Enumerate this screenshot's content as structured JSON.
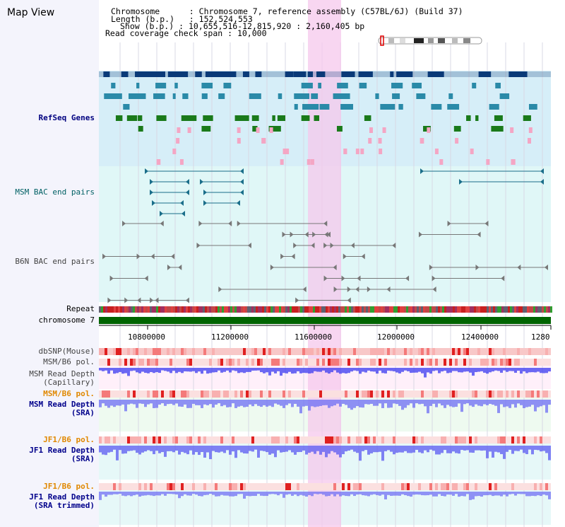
{
  "page_title": "Map View",
  "header": {
    "chromosome_label": "Chromosome",
    "chromosome_value": "Chromosome 7, reference assembly (C57BL/6J) (Build 37)",
    "length_label": "Length (b.p.)",
    "length_value": "152,524,553",
    "show_label": "Show (b.p.)",
    "show_value": "10,655,516-12,815,920 : 2,160,405 bp",
    "coverage_label": "Read coverage check span",
    "coverage_value": "10,000"
  },
  "tracks": {
    "refseq": "RefSeq Genes",
    "msm_bac": "MSM BAC end pairs",
    "b6n_bac": "B6N BAC end pairs",
    "repeat": "Repeat",
    "chromosome": "chromosome 7",
    "dbsnp": "dbSNP(Mouse)",
    "msm_b6_pol_1": "MSM/B6 pol.",
    "msm_depth_cap_1": "MSM Read Depth",
    "msm_depth_cap_2": "(Capillary)",
    "msm_b6_pol_2": "MSM/B6 pol.",
    "msm_depth_sra_1": "MSM Read Depth",
    "msm_depth_sra_2": "(SRA)",
    "jf1_b6_pol_1": "JF1/B6 pol.",
    "jf1_depth_sra_1": "JF1 Read Depth",
    "jf1_depth_sra_2": "(SRA)",
    "jf1_b6_pol_2": "JF1/B6 pol.",
    "jf1_trim_1": "JF1 Read Depth",
    "jf1_trim_2": "(SRA trimmed)"
  },
  "axis": {
    "ticks": [
      "10800000",
      "11200000",
      "11600000",
      "12000000",
      "12400000",
      "1280"
    ]
  },
  "colors": {
    "refseq_bg": "#d6eef8",
    "bac_bg": "#e0f7f7",
    "highlight": "#f6c8ec",
    "chromosome_bar": "#006400",
    "gene_dark": "#0a3a78",
    "gene_teal": "#2a8aa8",
    "gene_green": "#1a7a1a",
    "gene_pink": "#f4a6c4",
    "depth_blue": "#3a3af0",
    "pol_red": "#e02020"
  }
}
